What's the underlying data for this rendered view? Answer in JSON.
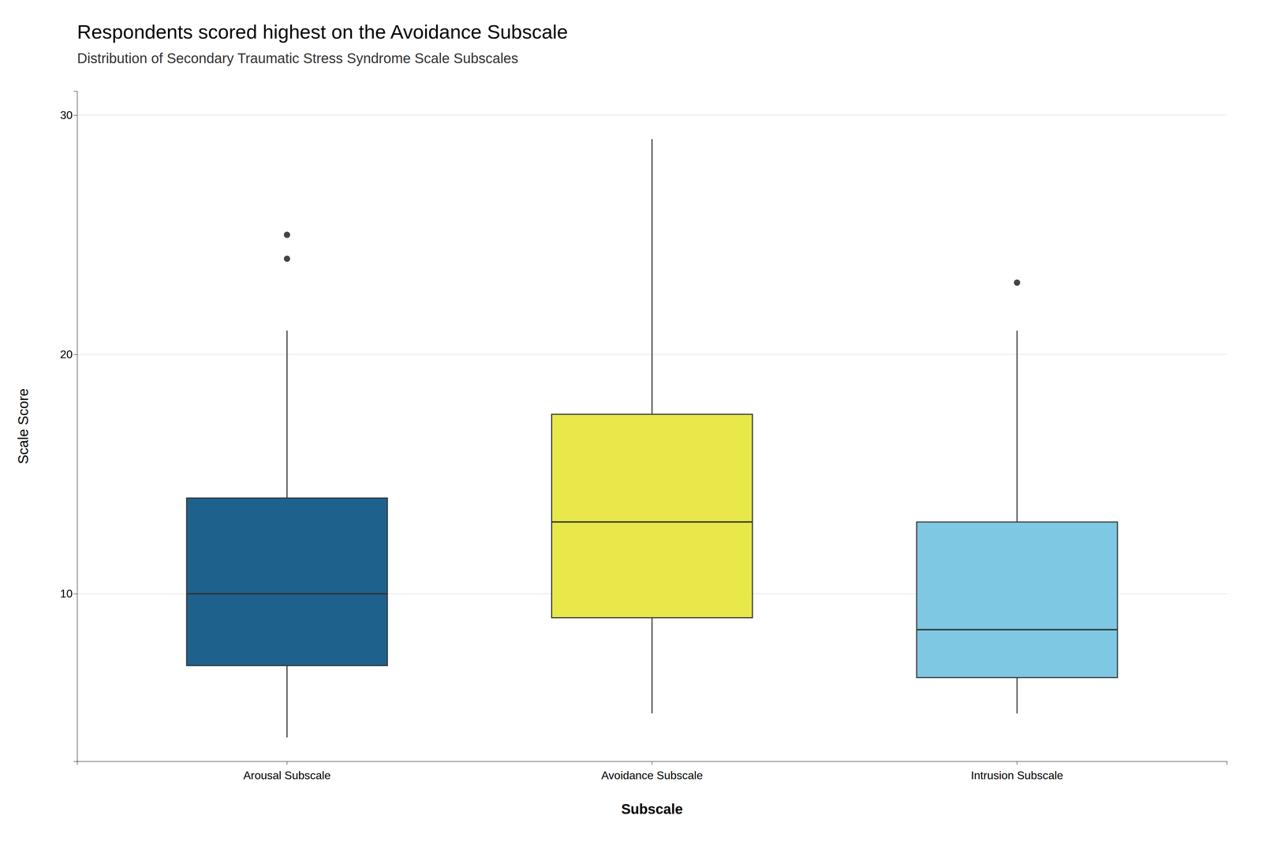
{
  "chart_data": {
    "type": "box",
    "title": "Respondents scored highest on the Avoidance Subscale",
    "subtitle": "Distribution of Secondary Traumatic Stress Syndrome Scale Subscales",
    "xlabel": "Subscale",
    "ylabel": "Scale Score",
    "categories": [
      "Arousal Subscale",
      "Avoidance Subscale",
      "Intrusion Subscale"
    ],
    "colors": [
      "#1f618d",
      "#e8e84a",
      "#7ec8e3"
    ],
    "boxes": [
      {
        "q1": 7.0,
        "median": 10.0,
        "q3": 14.0,
        "whisker_low": 4.0,
        "whisker_high": 21.0,
        "outliers": [
          25.0,
          24.0
        ]
      },
      {
        "q1": 9.0,
        "median": 13.0,
        "q3": 17.5,
        "whisker_low": 5.0,
        "whisker_high": 29.0,
        "outliers": []
      },
      {
        "q1": 6.5,
        "median": 8.5,
        "q3": 13.0,
        "whisker_low": 5.0,
        "whisker_high": 21.0,
        "outliers": [
          23.0
        ]
      }
    ],
    "ylim": [
      3,
      31
    ],
    "yticks": [
      10,
      20,
      30
    ],
    "grid": true
  }
}
